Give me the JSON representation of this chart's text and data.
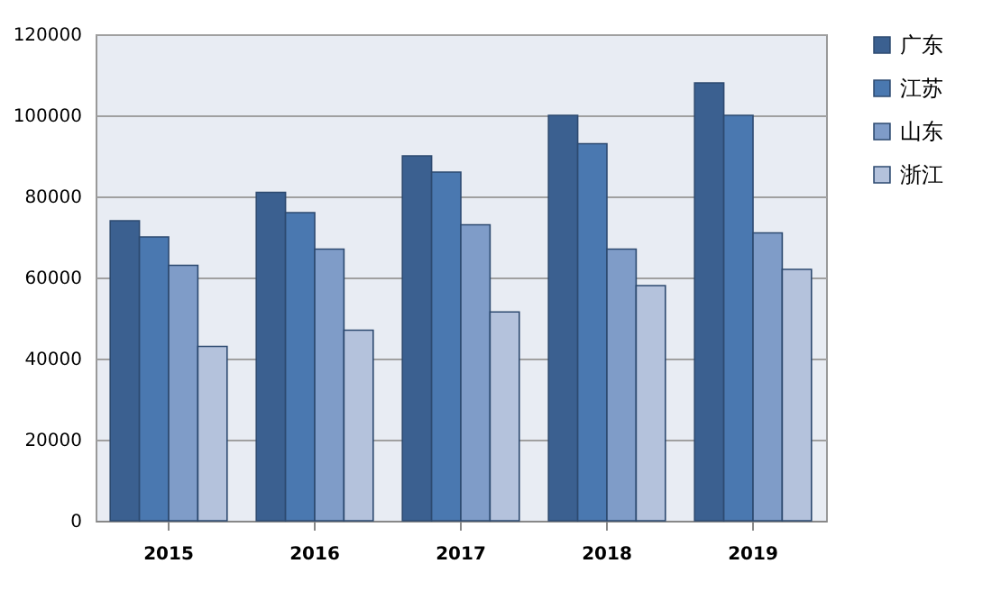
{
  "chart_data": {
    "type": "bar",
    "categories": [
      "2015",
      "2016",
      "2017",
      "2018",
      "2019"
    ],
    "series": [
      {
        "name": "广东",
        "color": "#3b6090",
        "values": [
          74000,
          81000,
          90000,
          100000,
          108000
        ]
      },
      {
        "name": "江苏",
        "color": "#4a78b0",
        "values": [
          70000,
          76000,
          86000,
          93000,
          100000
        ]
      },
      {
        "name": "山东",
        "color": "#7f9cc8",
        "values": [
          63000,
          67000,
          73000,
          67000,
          71000
        ]
      },
      {
        "name": "浙江",
        "color": "#b4c2dc",
        "values": [
          43000,
          47000,
          51500,
          58000,
          62000
        ]
      }
    ],
    "ylim": [
      0,
      120000
    ],
    "yticks": [
      0,
      20000,
      40000,
      60000,
      80000,
      100000,
      120000
    ],
    "grid": "y",
    "legend": "right"
  }
}
